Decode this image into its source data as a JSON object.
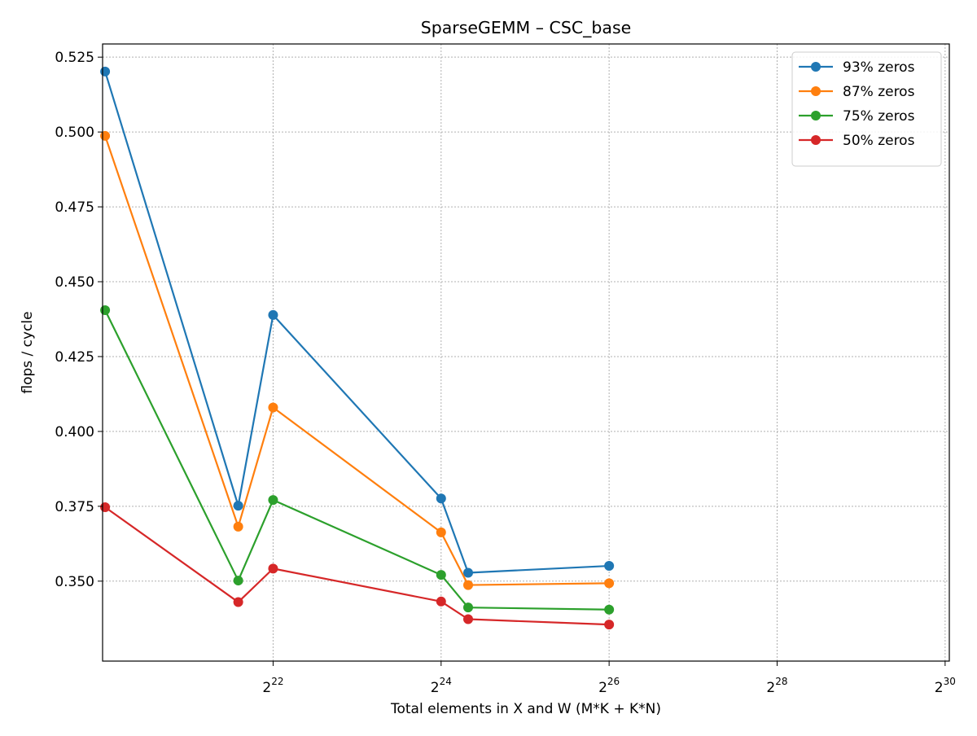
{
  "chart_data": {
    "type": "line",
    "title": "SparseGEMM – CSC_base",
    "xlabel": "Total elements in X and W (M*K + K*N)",
    "ylabel": "flops / cycle",
    "x_scale": "log2",
    "x_tick_base": "2",
    "x_tick_exponents": [
      "22",
      "24",
      "26",
      "28",
      "30"
    ],
    "y_ticks": [
      "0.350",
      "0.375",
      "0.400",
      "0.425",
      "0.450",
      "0.475",
      "0.500",
      "0.525"
    ],
    "ylim": [
      0.3233,
      0.5294
    ],
    "grid": true,
    "legend_position": "top-right",
    "x": [
      1048576,
      3145728,
      4194304,
      16777216,
      20971520,
      67108864
    ],
    "series": [
      {
        "name": "93% zeros",
        "color": "#1f77b4",
        "values": [
          0.5202,
          0.3752,
          0.4389,
          0.3776,
          0.3528,
          0.3551
        ]
      },
      {
        "name": "87% zeros",
        "color": "#ff7f0e",
        "values": [
          0.4987,
          0.3682,
          0.408,
          0.3663,
          0.3487,
          0.3493
        ]
      },
      {
        "name": "75% zeros",
        "color": "#2ca02c",
        "values": [
          0.4405,
          0.3502,
          0.3771,
          0.3521,
          0.3412,
          0.3405
        ]
      },
      {
        "name": "50% zeros",
        "color": "#d62728",
        "values": [
          0.3747,
          0.343,
          0.3542,
          0.3432,
          0.3373,
          0.3355
        ]
      }
    ]
  }
}
